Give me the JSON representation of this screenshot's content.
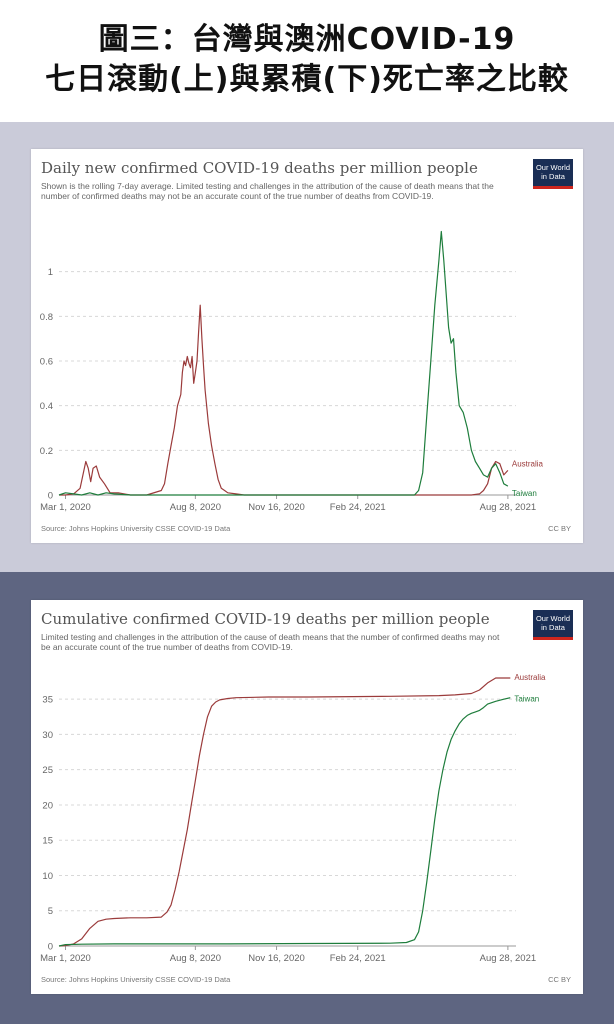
{
  "header": {
    "line1": "圖三：台灣與澳洲COVID-19",
    "line2": "七日滾動(上)與累積(下)死亡率之比較"
  },
  "colors": {
    "australia": "#9b3b3b",
    "taiwan": "#1e7d3c",
    "grid": "#d8d8d8",
    "logo_bg": "#1a2e55",
    "logo_bar": "#ce261e",
    "band_top": "#cacbd9",
    "band_bottom": "#5e6581"
  },
  "logo": {
    "line1": "Our World",
    "line2": "in Data"
  },
  "chart_data": [
    {
      "type": "line",
      "title": "Daily new confirmed COVID-19 deaths per million people",
      "subtitle": "Shown is the rolling 7-day average. Limited testing and challenges in the attribution of the cause of death means that the number of confirmed deaths may not be an accurate count of the true number of deaths from COVID-19.",
      "source": "Source: Johns Hopkins University CSSE COVID-19 Data",
      "license": "CC BY",
      "x_tick_labels": [
        "Mar 1, 2020",
        "Aug 8, 2020",
        "Nov 16, 2020",
        "Feb 24, 2021",
        "Aug 28, 2021"
      ],
      "x_tick_days": [
        0,
        160,
        260,
        360,
        545
      ],
      "x_range_days": [
        -8,
        555
      ],
      "y_ticks": [
        "0",
        "0.2",
        "0.4",
        "0.6",
        "0.8",
        "1"
      ],
      "ylim": [
        0,
        1.2
      ],
      "grid": true,
      "series": [
        {
          "name": "Australia",
          "x_days": [
            -8,
            0,
            10,
            18,
            22,
            25,
            28,
            31,
            34,
            38,
            42,
            48,
            55,
            65,
            80,
            100,
            118,
            122,
            126,
            130,
            134,
            138,
            142,
            144,
            146,
            148,
            150,
            152,
            154,
            156,
            158,
            160,
            162,
            164,
            166,
            168,
            170,
            172,
            176,
            180,
            184,
            188,
            192,
            196,
            200,
            210,
            220,
            240,
            260,
            300,
            340,
            380,
            420,
            460,
            480,
            500,
            510,
            515,
            520,
            525,
            530,
            535,
            540,
            545
          ],
          "y": [
            0,
            0,
            0.005,
            0.03,
            0.1,
            0.15,
            0.12,
            0.06,
            0.12,
            0.13,
            0.08,
            0.05,
            0.01,
            0.01,
            0.0,
            0.0,
            0.02,
            0.05,
            0.14,
            0.22,
            0.3,
            0.4,
            0.45,
            0.55,
            0.6,
            0.58,
            0.62,
            0.59,
            0.57,
            0.62,
            0.5,
            0.55,
            0.6,
            0.73,
            0.85,
            0.7,
            0.58,
            0.47,
            0.32,
            0.22,
            0.14,
            0.07,
            0.03,
            0.02,
            0.01,
            0.005,
            0.0,
            0.0,
            0.0,
            0.0,
            0.0,
            0.0,
            0.0,
            0.0,
            0.0,
            0.0,
            0.005,
            0.02,
            0.05,
            0.12,
            0.15,
            0.14,
            0.09,
            0.11
          ]
        },
        {
          "name": "Taiwan",
          "x_days": [
            -8,
            0,
            10,
            20,
            30,
            40,
            50,
            60,
            80,
            120,
            200,
            300,
            400,
            430,
            435,
            440,
            445,
            450,
            455,
            460,
            463,
            466,
            469,
            472,
            475,
            478,
            481,
            485,
            490,
            495,
            500,
            505,
            510,
            515,
            520,
            525,
            530,
            535,
            540,
            545
          ],
          "y": [
            0,
            0.01,
            0.005,
            0.0,
            0.01,
            0.0,
            0.01,
            0.005,
            0.0,
            0.0,
            0.0,
            0.0,
            0.0,
            0.0,
            0.02,
            0.1,
            0.35,
            0.6,
            0.85,
            1.05,
            1.18,
            1.05,
            0.9,
            0.75,
            0.68,
            0.7,
            0.55,
            0.4,
            0.37,
            0.3,
            0.2,
            0.15,
            0.12,
            0.09,
            0.08,
            0.12,
            0.14,
            0.1,
            0.05,
            0.04
          ]
        }
      ]
    },
    {
      "type": "line",
      "title": "Cumulative confirmed COVID-19 deaths per million people",
      "subtitle": "Limited testing and challenges in the attribution of the cause of death means that the number of confirmed deaths may not be an accurate count of the true number of deaths from COVID-19.",
      "source": "Source: Johns Hopkins University CSSE COVID-19 Data",
      "license": "CC BY",
      "x_tick_labels": [
        "Mar 1, 2020",
        "Aug 8, 2020",
        "Nov 16, 2020",
        "Feb 24, 2021",
        "Aug 28, 2021"
      ],
      "x_tick_days": [
        0,
        160,
        260,
        360,
        545
      ],
      "x_range_days": [
        -8,
        555
      ],
      "y_ticks": [
        "0",
        "5",
        "10",
        "15",
        "20",
        "25",
        "30",
        "35"
      ],
      "ylim": [
        0,
        38
      ],
      "grid": true,
      "series": [
        {
          "name": "Australia",
          "x_days": [
            -8,
            0,
            10,
            20,
            30,
            40,
            50,
            60,
            80,
            100,
            118,
            125,
            130,
            135,
            140,
            145,
            150,
            155,
            160,
            165,
            170,
            175,
            180,
            185,
            190,
            200,
            210,
            250,
            300,
            400,
            460,
            480,
            500,
            510,
            520,
            530,
            540,
            548
          ],
          "y": [
            0,
            0.05,
            0.3,
            1.0,
            2.5,
            3.5,
            3.8,
            3.9,
            4.0,
            4.0,
            4.1,
            4.8,
            5.8,
            8.0,
            10.5,
            13.5,
            16.5,
            20.0,
            23.5,
            27.0,
            30.0,
            32.5,
            34.0,
            34.6,
            34.9,
            35.1,
            35.2,
            35.3,
            35.3,
            35.4,
            35.5,
            35.6,
            35.8,
            36.3,
            37.3,
            38.0,
            38.8,
            39.6
          ]
        },
        {
          "name": "Taiwan",
          "x_days": [
            -8,
            0,
            20,
            60,
            120,
            200,
            300,
            400,
            420,
            430,
            435,
            440,
            445,
            450,
            455,
            460,
            465,
            470,
            475,
            480,
            485,
            490,
            495,
            500,
            505,
            510,
            515,
            520,
            530,
            540,
            548
          ],
          "y": [
            0,
            0.2,
            0.25,
            0.3,
            0.3,
            0.3,
            0.35,
            0.4,
            0.5,
            0.9,
            2.0,
            5.0,
            9.0,
            13.5,
            18.0,
            22.0,
            25.0,
            27.5,
            29.3,
            30.5,
            31.5,
            32.2,
            32.7,
            33.0,
            33.2,
            33.4,
            33.8,
            34.3,
            34.7,
            35.0,
            35.2
          ]
        }
      ]
    }
  ]
}
